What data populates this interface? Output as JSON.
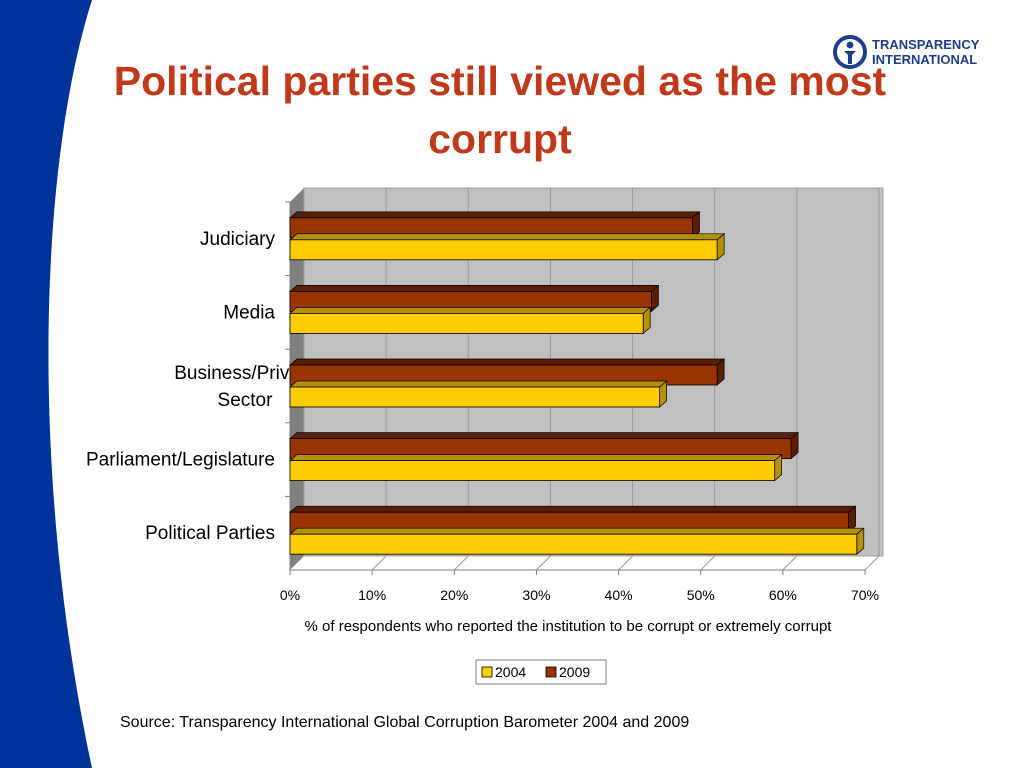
{
  "slide": {
    "title": "Political parties still viewed as the most corrupt",
    "source": "Source: Transparency International Global Corruption Barometer 2004 and 2009",
    "logo_text": "TRANSPARENCY\nINTERNATIONAL",
    "colors": {
      "title": "#c0391a",
      "band": "#003399",
      "logo": "#1b3f8b"
    }
  },
  "chart_data": {
    "type": "bar",
    "orientation": "horizontal",
    "categories": [
      "Judiciary",
      "Media",
      "Business/Private Sector",
      "Parliament/Legislature",
      "Political Parties"
    ],
    "category_label_lines": [
      [
        "Judiciary"
      ],
      [
        "Media"
      ],
      [
        "Business/Private",
        "Sector"
      ],
      [
        "Parliament/Legislature"
      ],
      [
        "Political Parties"
      ]
    ],
    "series": [
      {
        "name": "2004",
        "values": [
          52,
          43,
          45,
          59,
          69
        ],
        "color": "#ffcc00",
        "side_color": "#b59000"
      },
      {
        "name": "2009",
        "values": [
          49,
          44,
          52,
          61,
          68
        ],
        "color": "#993300",
        "side_color": "#5c1e00"
      }
    ],
    "xlabel": "% of respondents who reported the institution to be corrupt or extremely corrupt",
    "xlim": [
      0,
      70
    ],
    "xticks": [
      "0%",
      "10%",
      "20%",
      "30%",
      "40%",
      "50%",
      "60%",
      "70%"
    ],
    "grid": "vertical",
    "legend": "bottom-center",
    "colors": {
      "plot_bg": "#c0c0c0",
      "wall_side": "#808080"
    }
  }
}
